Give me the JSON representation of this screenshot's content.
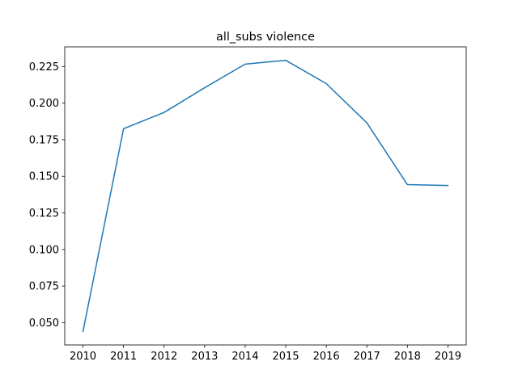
{
  "chart_data": {
    "type": "line",
    "title": "all_subs violence",
    "xlabel": "",
    "ylabel": "",
    "x": [
      2010,
      2011,
      2012,
      2013,
      2014,
      2015,
      2016,
      2017,
      2018,
      2019
    ],
    "series": [
      {
        "values": [
          0.044,
          0.1825,
          0.1936,
          0.2105,
          0.2266,
          0.2292,
          0.2133,
          0.1865,
          0.1443,
          0.1437
        ],
        "color": "#1f77b4"
      }
    ],
    "xlim": [
      2009.55,
      2019.45
    ],
    "ylim": [
      0.0348,
      0.2384
    ],
    "x_ticks": [
      "2010",
      "2011",
      "2012",
      "2013",
      "2014",
      "2015",
      "2016",
      "2017",
      "2018",
      "2019"
    ],
    "y_ticks": [
      "0.050",
      "0.075",
      "0.100",
      "0.125",
      "0.150",
      "0.175",
      "0.200",
      "0.225"
    ],
    "grid": false,
    "legend": "none"
  }
}
